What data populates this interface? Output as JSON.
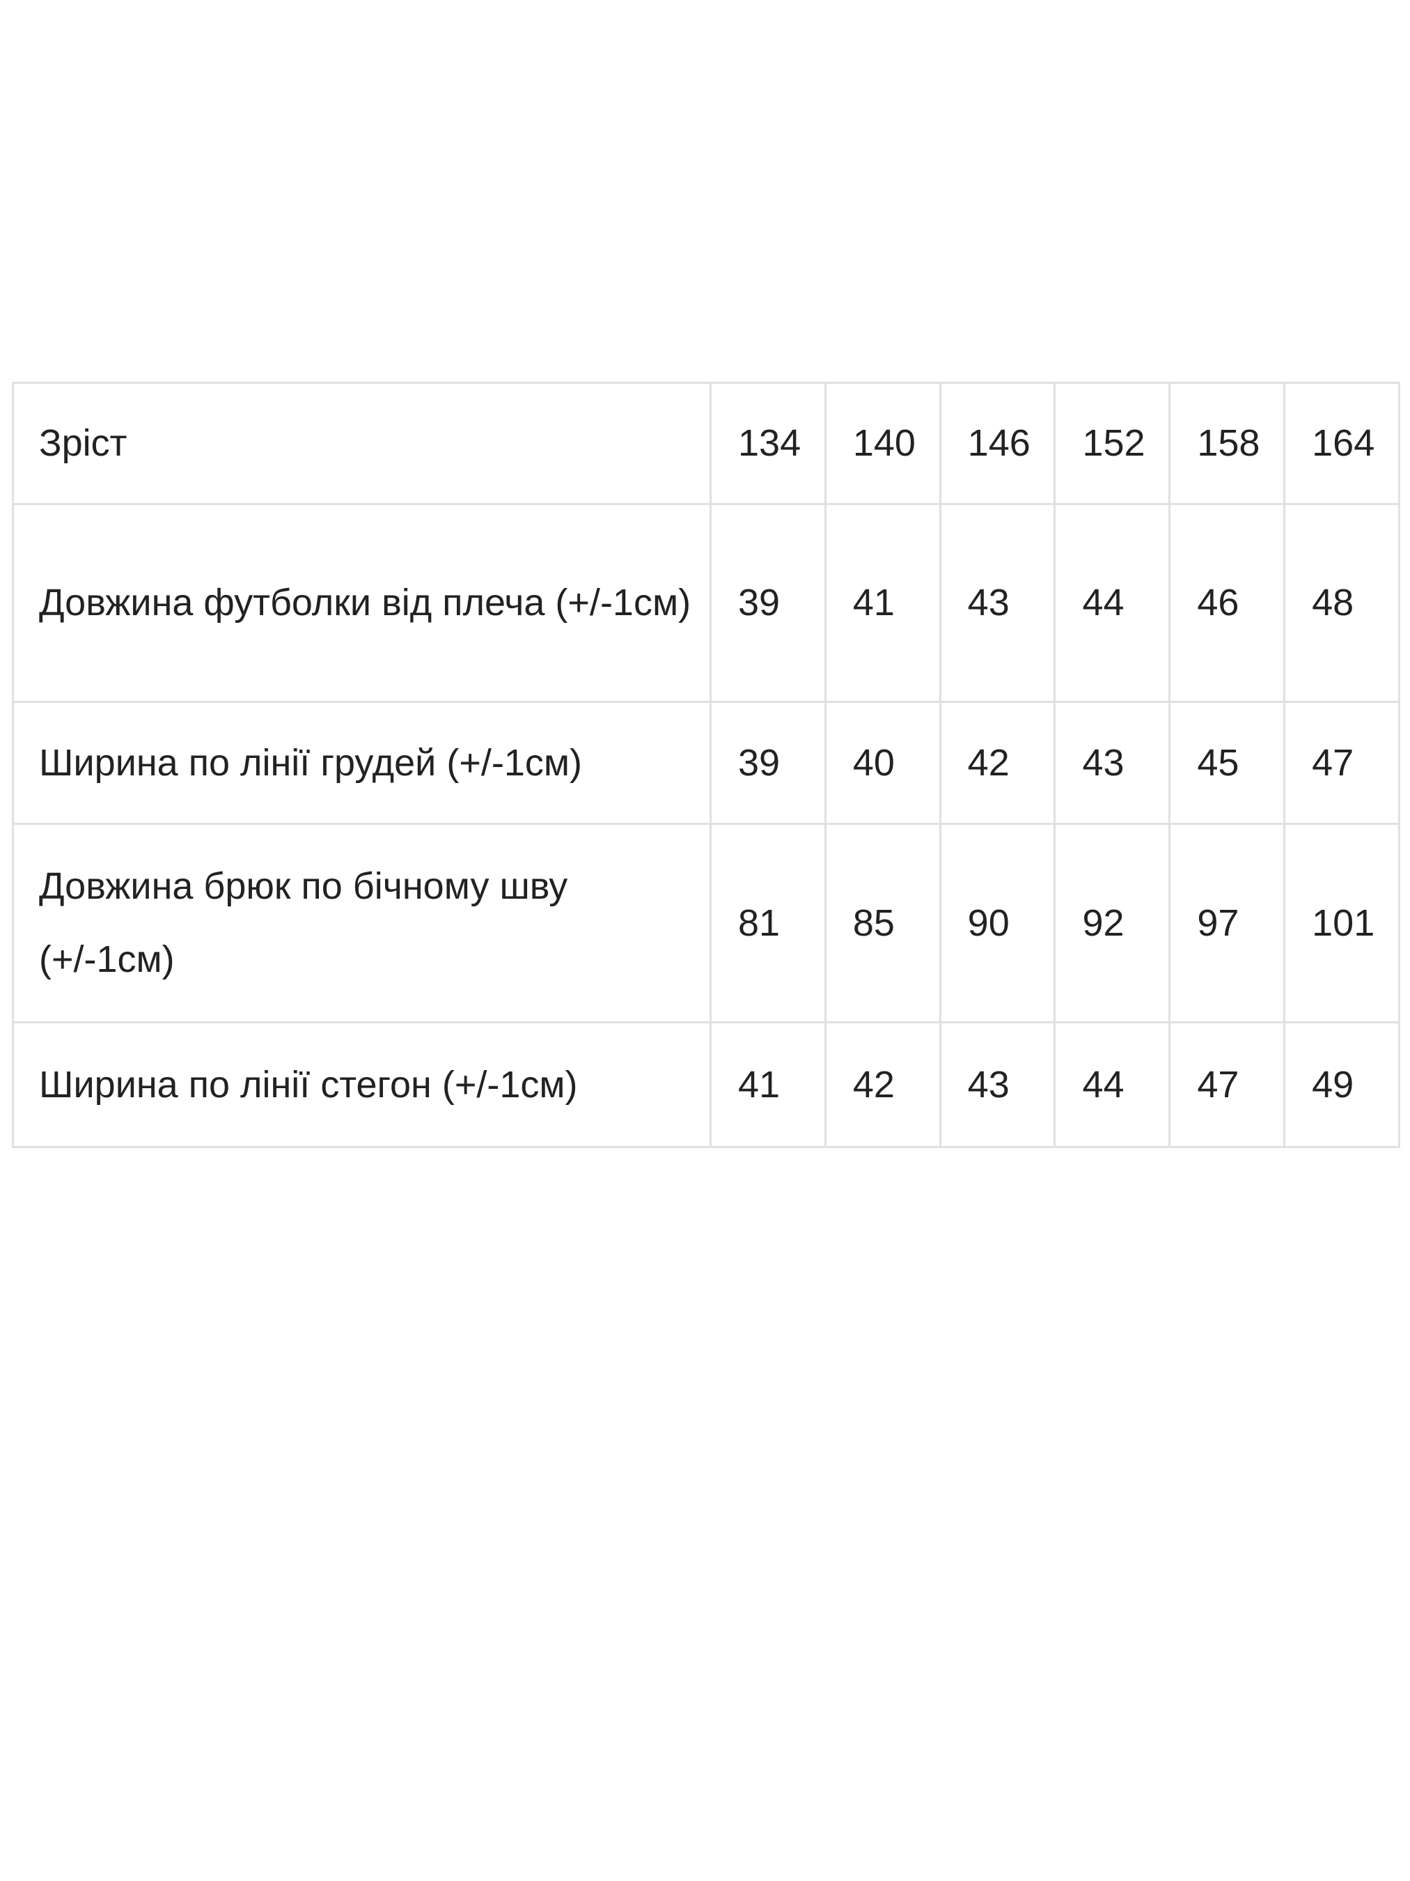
{
  "size_table": {
    "header": {
      "label": "Зріст",
      "values": [
        "134",
        "140",
        "146",
        "152",
        "158",
        "164"
      ]
    },
    "rows": [
      {
        "label": "Довжина футболки від плеча (+/-1см)",
        "values": [
          "39",
          "41",
          "43",
          "44",
          "46",
          "48"
        ]
      },
      {
        "label": "Ширина по лінії грудей (+/-1см)",
        "values": [
          "39",
          "40",
          "42",
          "43",
          "45",
          "47"
        ]
      },
      {
        "label": "Довжина брюк по бічному шву (+/-1см)",
        "values": [
          "81",
          "85",
          "90",
          "92",
          "97",
          "101"
        ]
      },
      {
        "label": "Ширина по лінії стегон (+/-1см)",
        "values": [
          "41",
          "42",
          "43",
          "44",
          "47",
          "49"
        ]
      }
    ]
  }
}
